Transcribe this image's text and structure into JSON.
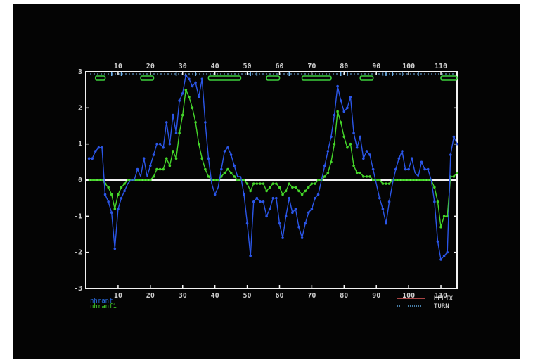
{
  "chart_data": {
    "type": "line",
    "title": "",
    "xlabel": "",
    "ylabel": "",
    "xlim": [
      0,
      115
    ],
    "ylim": [
      -3,
      3
    ],
    "x_ticks": [
      10,
      20,
      30,
      40,
      50,
      60,
      70,
      80,
      90,
      100,
      110
    ],
    "x_tick_labels": [
      "10",
      "20",
      "30",
      "40",
      "50",
      "60",
      "70",
      "80",
      "90",
      "100",
      "110"
    ],
    "y_ticks": [
      -3,
      -2,
      -1,
      0,
      1,
      2,
      3
    ],
    "y_tick_labels": [
      "-3",
      "-2",
      "-1",
      "0",
      "1",
      "2",
      "3"
    ],
    "grid": false,
    "series": [
      {
        "name": "nhranf",
        "color": "#2b56e8",
        "x": [
          1,
          2,
          3,
          4,
          5,
          6,
          7,
          8,
          9,
          10,
          11,
          12,
          13,
          14,
          15,
          16,
          17,
          18,
          19,
          20,
          21,
          22,
          23,
          24,
          25,
          26,
          27,
          28,
          29,
          30,
          31,
          32,
          33,
          34,
          35,
          36,
          37,
          38,
          39,
          40,
          41,
          42,
          43,
          44,
          45,
          46,
          47,
          48,
          49,
          50,
          51,
          52,
          53,
          54,
          55,
          56,
          57,
          58,
          59,
          60,
          61,
          62,
          63,
          64,
          65,
          66,
          67,
          68,
          69,
          70,
          71,
          72,
          73,
          74,
          75,
          76,
          77,
          78,
          79,
          80,
          81,
          82,
          83,
          84,
          85,
          86,
          87,
          88,
          89,
          90,
          91,
          92,
          93,
          94,
          95,
          96,
          97,
          98,
          99,
          100,
          101,
          102,
          103,
          104,
          105,
          106,
          107,
          108,
          109,
          110,
          111,
          112,
          113,
          114,
          115
        ],
        "y": [
          0.6,
          0.6,
          0.8,
          0.9,
          0.9,
          -0.4,
          -0.6,
          -0.9,
          -1.9,
          -0.8,
          -0.5,
          -0.3,
          -0.1,
          0.0,
          0.0,
          0.3,
          0.1,
          0.6,
          0.1,
          0.4,
          0.7,
          1.0,
          1.0,
          0.9,
          1.6,
          1.0,
          1.8,
          1.3,
          2.2,
          2.4,
          2.9,
          2.8,
          2.6,
          2.7,
          2.3,
          2.8,
          1.6,
          0.6,
          -0.1,
          -0.4,
          -0.2,
          0.3,
          0.8,
          0.9,
          0.7,
          0.4,
          0.1,
          0.1,
          -0.4,
          -1.2,
          -2.1,
          -0.6,
          -0.5,
          -0.6,
          -0.6,
          -1.0,
          -0.8,
          -0.5,
          -0.5,
          -1.2,
          -1.6,
          -1.0,
          -0.5,
          -0.9,
          -0.8,
          -1.3,
          -1.6,
          -1.2,
          -0.9,
          -0.8,
          -0.5,
          -0.4,
          0.0,
          0.4,
          0.8,
          1.2,
          1.8,
          2.6,
          2.2,
          1.9,
          2.0,
          2.3,
          1.3,
          0.9,
          1.2,
          0.6,
          0.8,
          0.7,
          0.3,
          -0.1,
          -0.5,
          -0.8,
          -1.2,
          -0.6,
          -0.1,
          0.3,
          0.6,
          0.8,
          0.3,
          0.3,
          0.6,
          0.2,
          0.1,
          0.5,
          0.3,
          0.3,
          0.0,
          -0.6,
          -1.7,
          -2.2,
          -2.1,
          -2.0,
          0.7,
          1.2,
          1.0
        ]
      },
      {
        "name": "nhranf1",
        "color": "#45d62a",
        "x": [
          1,
          2,
          3,
          4,
          5,
          6,
          7,
          8,
          9,
          10,
          11,
          12,
          13,
          14,
          15,
          16,
          17,
          18,
          19,
          20,
          21,
          22,
          23,
          24,
          25,
          26,
          27,
          28,
          29,
          30,
          31,
          32,
          33,
          34,
          35,
          36,
          37,
          38,
          39,
          40,
          41,
          42,
          43,
          44,
          45,
          46,
          47,
          48,
          49,
          50,
          51,
          52,
          53,
          54,
          55,
          56,
          57,
          58,
          59,
          60,
          61,
          62,
          63,
          64,
          65,
          66,
          67,
          68,
          69,
          70,
          71,
          72,
          73,
          74,
          75,
          76,
          77,
          78,
          79,
          80,
          81,
          82,
          83,
          84,
          85,
          86,
          87,
          88,
          89,
          90,
          91,
          92,
          93,
          94,
          95,
          96,
          97,
          98,
          99,
          100,
          101,
          102,
          103,
          104,
          105,
          106,
          107,
          108,
          109,
          110,
          111,
          112,
          113,
          114,
          115
        ],
        "y": [
          0.0,
          0.0,
          0.0,
          0.0,
          0.0,
          -0.1,
          -0.2,
          -0.4,
          -0.8,
          -0.4,
          -0.2,
          -0.1,
          0.0,
          0.0,
          0.0,
          0.0,
          0.0,
          0.0,
          0.0,
          0.0,
          0.1,
          0.3,
          0.3,
          0.3,
          0.6,
          0.4,
          0.8,
          0.6,
          1.3,
          1.8,
          2.5,
          2.3,
          2.0,
          1.6,
          1.0,
          0.6,
          0.3,
          0.1,
          0.0,
          0.0,
          0.0,
          0.1,
          0.2,
          0.3,
          0.2,
          0.1,
          0.0,
          0.0,
          0.0,
          -0.1,
          -0.3,
          -0.1,
          -0.1,
          -0.1,
          -0.1,
          -0.3,
          -0.2,
          -0.1,
          -0.1,
          -0.2,
          -0.4,
          -0.3,
          -0.1,
          -0.2,
          -0.2,
          -0.3,
          -0.4,
          -0.3,
          -0.2,
          -0.1,
          -0.1,
          0.0,
          0.0,
          0.1,
          0.2,
          0.5,
          1.0,
          1.9,
          1.6,
          1.2,
          0.9,
          1.0,
          0.4,
          0.2,
          0.2,
          0.1,
          0.1,
          0.1,
          0.0,
          0.0,
          0.0,
          -0.1,
          -0.1,
          -0.1,
          0.0,
          0.0,
          0.0,
          0.0,
          0.0,
          0.0,
          0.0,
          0.0,
          0.0,
          0.0,
          0.0,
          0.0,
          0.0,
          -0.2,
          -0.6,
          -1.3,
          -1.0,
          -1.0,
          0.1,
          0.1,
          0.2
        ]
      }
    ],
    "legend": {
      "placement": "bottom-left",
      "entries": [
        {
          "label": "nhranf",
          "color": "#2b6fe8"
        },
        {
          "label": "nhranf1",
          "color": "#45d62a"
        }
      ]
    },
    "secondary_legend": {
      "placement": "bottom-right",
      "entries": [
        {
          "label": "HELIX",
          "color": "#e05a5a",
          "style": "solid"
        },
        {
          "label": "TURN",
          "color": "#5fa8e0",
          "style": "dotted"
        }
      ]
    },
    "structure_track": {
      "helix_segments": [
        [
          3,
          6
        ],
        [
          17,
          21
        ],
        [
          38,
          48
        ],
        [
          56,
          60
        ],
        [
          67,
          76
        ],
        [
          85,
          89
        ],
        [
          110,
          115
        ]
      ],
      "helix_color": "#3ccf3c",
      "turn_positions": [
        8,
        11,
        28,
        34,
        51,
        53,
        63,
        79,
        81,
        92,
        93,
        95,
        98,
        103
      ],
      "turn_color": "#6fb4ee"
    },
    "axis_color": "#f2f2f2"
  }
}
